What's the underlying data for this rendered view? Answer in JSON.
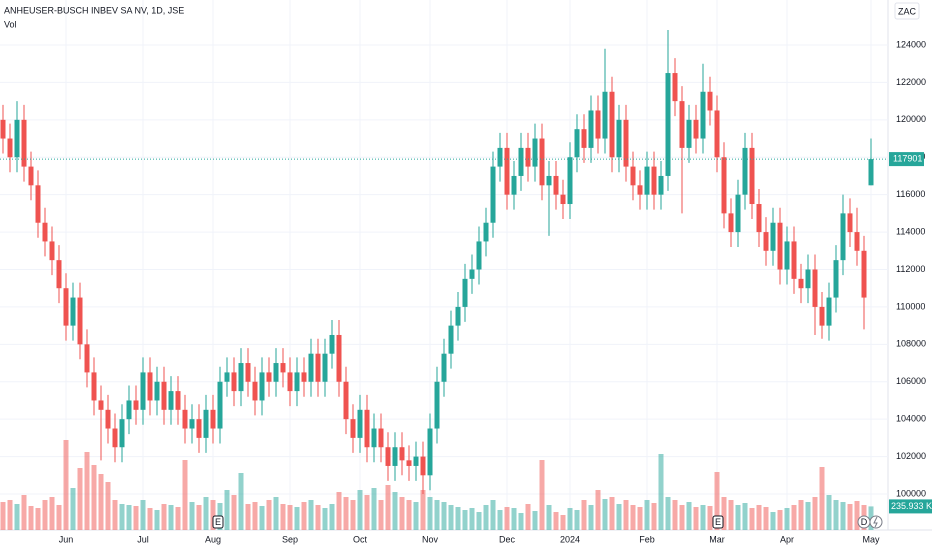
{
  "chart_data": {
    "type": "candlestick",
    "title": "ANHEUSER-BUSCH INBEV SA NV, 1D, JSE",
    "volume_title": "Vol",
    "currency": "ZAC",
    "up_color": "#26a69a",
    "down_color": "#ef5350",
    "ylim": [
      98076,
      126405
    ],
    "yticks": [
      100000,
      102000,
      104000,
      106000,
      108000,
      110000,
      112000,
      114000,
      116000,
      118000,
      120000,
      122000,
      124000
    ],
    "grid": true,
    "volume_ylim": [
      0,
      2000000
    ],
    "volume_label": "235.933 K",
    "events": [
      {
        "label": "E"
      },
      {
        "label": "E"
      },
      {
        "label": "D"
      }
    ],
    "categories": [
      null,
      null,
      null,
      null,
      null,
      null,
      null,
      null,
      null,
      "Jun",
      null,
      null,
      null,
      null,
      null,
      null,
      null,
      null,
      null,
      null,
      "Jul",
      null,
      null,
      null,
      null,
      null,
      null,
      null,
      null,
      null,
      "Aug",
      null,
      null,
      null,
      null,
      null,
      null,
      null,
      null,
      null,
      null,
      "Sep",
      null,
      null,
      null,
      null,
      null,
      null,
      null,
      null,
      null,
      "Oct",
      null,
      null,
      null,
      null,
      null,
      null,
      null,
      null,
      null,
      "Nov",
      null,
      null,
      null,
      null,
      null,
      null,
      null,
      null,
      null,
      null,
      "Dec",
      null,
      null,
      null,
      null,
      null,
      null,
      null,
      null,
      "2024",
      null,
      null,
      null,
      null,
      null,
      null,
      null,
      null,
      null,
      null,
      "Feb",
      null,
      null,
      null,
      null,
      null,
      null,
      null,
      null,
      null,
      "Mar",
      null,
      null,
      null,
      null,
      null,
      null,
      null,
      null,
      null,
      "Apr",
      null,
      null,
      null,
      null,
      null,
      null,
      null,
      null,
      null,
      null,
      null,
      "May"
    ],
    "open": [
      120000,
      119000,
      118000,
      120000,
      117500,
      116500,
      114500,
      113500,
      112500,
      111000,
      109000,
      110500,
      108000,
      106500,
      105000,
      104500,
      103500,
      102500,
      104000,
      105000,
      104500,
      106500,
      105000,
      106000,
      104500,
      105500,
      104500,
      103500,
      104000,
      103000,
      104500,
      103500,
      106000,
      106500,
      105500,
      107000,
      106000,
      105000,
      106500,
      106000,
      107000,
      106500,
      105500,
      106500,
      106000,
      107500,
      106000,
      107500,
      108500,
      106000,
      104000,
      103000,
      104500,
      102500,
      103500,
      102500,
      101500,
      102500,
      101800,
      101500,
      102000,
      101000,
      103500,
      106000,
      107500,
      109000,
      110000,
      111500,
      112000,
      113500,
      114500,
      117500,
      118500,
      116000,
      117000,
      118500,
      117500,
      119000,
      116500,
      117000,
      116000,
      115500,
      118000,
      119500,
      118500,
      120500,
      119000,
      121500,
      118000,
      120000,
      117500,
      116500,
      116000,
      117500,
      116000,
      117000,
      122500,
      121000,
      118500,
      120000,
      119000,
      121500,
      120500,
      118000,
      115000,
      114000,
      116000,
      118500,
      115500,
      114000,
      113000,
      114500,
      112000,
      113500,
      111500,
      111000,
      112000,
      110000,
      109000,
      110500,
      112500,
      115000,
      114000,
      113000,
      116500
    ],
    "high": [
      120800,
      119800,
      121000,
      120800,
      118300,
      117300,
      115300,
      114300,
      113300,
      111800,
      111300,
      111300,
      108800,
      107300,
      105800,
      105300,
      104300,
      104800,
      105800,
      105800,
      107300,
      107300,
      106800,
      106800,
      106300,
      106300,
      105300,
      104800,
      104800,
      105300,
      105300,
      106800,
      107300,
      107300,
      107800,
      107800,
      106800,
      107300,
      107300,
      107800,
      107800,
      107300,
      107300,
      107300,
      108300,
      108300,
      108300,
      109300,
      109300,
      106800,
      104800,
      105300,
      105300,
      104300,
      104300,
      103300,
      103300,
      103300,
      102600,
      102800,
      102800,
      104300,
      106800,
      108300,
      109800,
      110800,
      112300,
      112800,
      114300,
      115300,
      118300,
      119300,
      119300,
      117800,
      119300,
      119300,
      119800,
      119800,
      117800,
      117800,
      116800,
      118800,
      120300,
      120300,
      121300,
      121300,
      123800,
      122300,
      120800,
      120800,
      118300,
      117300,
      118300,
      118300,
      117800,
      124800,
      123300,
      121800,
      120800,
      120800,
      123000,
      122300,
      121300,
      118800,
      115800,
      116800,
      119300,
      119300,
      116300,
      114800,
      115300,
      115300,
      114300,
      114300,
      112300,
      112800,
      112800,
      110800,
      111300,
      113300,
      116000,
      115800,
      115300,
      113800,
      119000
    ],
    "low": [
      118200,
      117200,
      117200,
      116700,
      115700,
      113700,
      112700,
      111700,
      110200,
      108200,
      108200,
      107200,
      105700,
      104200,
      101800,
      102700,
      101700,
      101700,
      103200,
      103700,
      103700,
      104200,
      104200,
      103700,
      103700,
      103700,
      102700,
      102700,
      102200,
      102200,
      102700,
      102700,
      105200,
      104700,
      104700,
      105200,
      104200,
      104200,
      105200,
      105200,
      105700,
      104700,
      104700,
      105200,
      105200,
      105200,
      105200,
      106700,
      105200,
      103200,
      102200,
      102200,
      101700,
      101700,
      101700,
      100700,
      100700,
      101000,
      100700,
      100700,
      100000,
      100200,
      102700,
      105200,
      106700,
      108200,
      109200,
      110700,
      111200,
      112700,
      113700,
      116700,
      115200,
      115200,
      116200,
      116700,
      116700,
      115700,
      113800,
      115200,
      114700,
      114700,
      117200,
      117700,
      117700,
      118200,
      118200,
      117200,
      117200,
      116700,
      115700,
      115200,
      115200,
      115200,
      115200,
      116200,
      120200,
      115000,
      117700,
      118200,
      118200,
      119700,
      117200,
      114200,
      113200,
      113200,
      115200,
      114700,
      113200,
      112200,
      112200,
      111200,
      111200,
      110700,
      110200,
      110200,
      108500,
      108300,
      108200,
      109700,
      111700,
      113200,
      112200,
      108800,
      116500
    ],
    "close": [
      119000,
      118000,
      120000,
      117500,
      116500,
      114500,
      113500,
      112500,
      111000,
      109000,
      110500,
      108000,
      106500,
      105000,
      104500,
      103500,
      102500,
      104000,
      105000,
      104500,
      106500,
      105000,
      106000,
      104500,
      105500,
      104500,
      103500,
      104000,
      103000,
      104500,
      103500,
      106000,
      106500,
      105500,
      107000,
      106000,
      105000,
      106500,
      106000,
      107000,
      106500,
      105500,
      106500,
      106000,
      107500,
      106000,
      107500,
      108500,
      106000,
      104000,
      103000,
      104500,
      102500,
      103500,
      102500,
      101500,
      102500,
      101800,
      101500,
      102000,
      101000,
      103500,
      106000,
      107500,
      109000,
      110000,
      111500,
      112000,
      113500,
      114500,
      117500,
      118500,
      116000,
      117000,
      118500,
      117500,
      119000,
      116500,
      117000,
      116000,
      115500,
      118000,
      119500,
      118500,
      120500,
      119000,
      121500,
      118000,
      120000,
      117500,
      116500,
      116000,
      117500,
      116000,
      117000,
      122500,
      121000,
      118500,
      120000,
      119000,
      121500,
      120500,
      118000,
      115000,
      114000,
      116000,
      118500,
      115500,
      114000,
      113000,
      114500,
      112000,
      113500,
      111500,
      111000,
      112000,
      110000,
      109000,
      110500,
      112500,
      115000,
      114000,
      113000,
      110500,
      117901
    ],
    "volume": [
      280000,
      300000,
      260000,
      350000,
      240000,
      220000,
      300000,
      330000,
      250000,
      900000,
      420000,
      620000,
      780000,
      650000,
      560000,
      480000,
      300000,
      260000,
      250000,
      240000,
      300000,
      220000,
      200000,
      260000,
      250000,
      230000,
      700000,
      280000,
      250000,
      330000,
      300000,
      270000,
      400000,
      350000,
      570000,
      260000,
      280000,
      240000,
      300000,
      330000,
      260000,
      250000,
      230000,
      280000,
      300000,
      250000,
      220000,
      260000,
      380000,
      330000,
      300000,
      400000,
      350000,
      420000,
      300000,
      450000,
      380000,
      330000,
      300000,
      280000,
      400000,
      330000,
      300000,
      280000,
      250000,
      230000,
      200000,
      220000,
      180000,
      250000,
      300000,
      200000,
      230000,
      220000,
      170000,
      260000,
      190000,
      700000,
      250000,
      180000,
      150000,
      220000,
      200000,
      300000,
      250000,
      400000,
      310000,
      330000,
      260000,
      300000,
      250000,
      230000,
      300000,
      270000,
      760000,
      330000,
      300000,
      250000,
      280000,
      230000,
      250000,
      240000,
      580000,
      330000,
      300000,
      250000,
      270000,
      220000,
      250000,
      230000,
      180000,
      200000,
      220000,
      250000,
      300000,
      280000,
      330000,
      630000,
      350000,
      300000,
      280000,
      260000,
      290000,
      250000,
      235933
    ]
  }
}
